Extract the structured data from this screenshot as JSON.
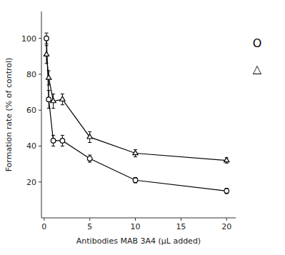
{
  "chart_data": {
    "type": "line",
    "xlabel": "Antibodies MAB 3A4 (μL added)",
    "ylabel": "Formation rate (% of control)",
    "x": [
      0.25,
      0.5,
      1.0,
      2.0,
      5.0,
      10.0,
      20.0
    ],
    "series": [
      {
        "name": "O",
        "marker": "circle",
        "values": [
          100,
          66,
          43,
          43,
          33,
          21,
          15
        ],
        "errors": [
          3,
          5,
          3,
          3,
          2,
          1.5,
          1.5
        ]
      },
      {
        "name": "△",
        "marker": "triangle",
        "values": [
          91,
          78,
          65,
          66,
          45,
          36,
          32
        ],
        "errors": [
          5,
          4,
          4,
          3,
          3,
          2,
          1.5
        ]
      }
    ],
    "color": "black",
    "xlim": [
      -0.3,
      21
    ],
    "ylim": [
      0,
      115
    ],
    "xticks": [
      0,
      5,
      10,
      15,
      20
    ],
    "yticks": [
      20,
      40,
      60,
      80,
      100
    ],
    "legend": "right"
  }
}
